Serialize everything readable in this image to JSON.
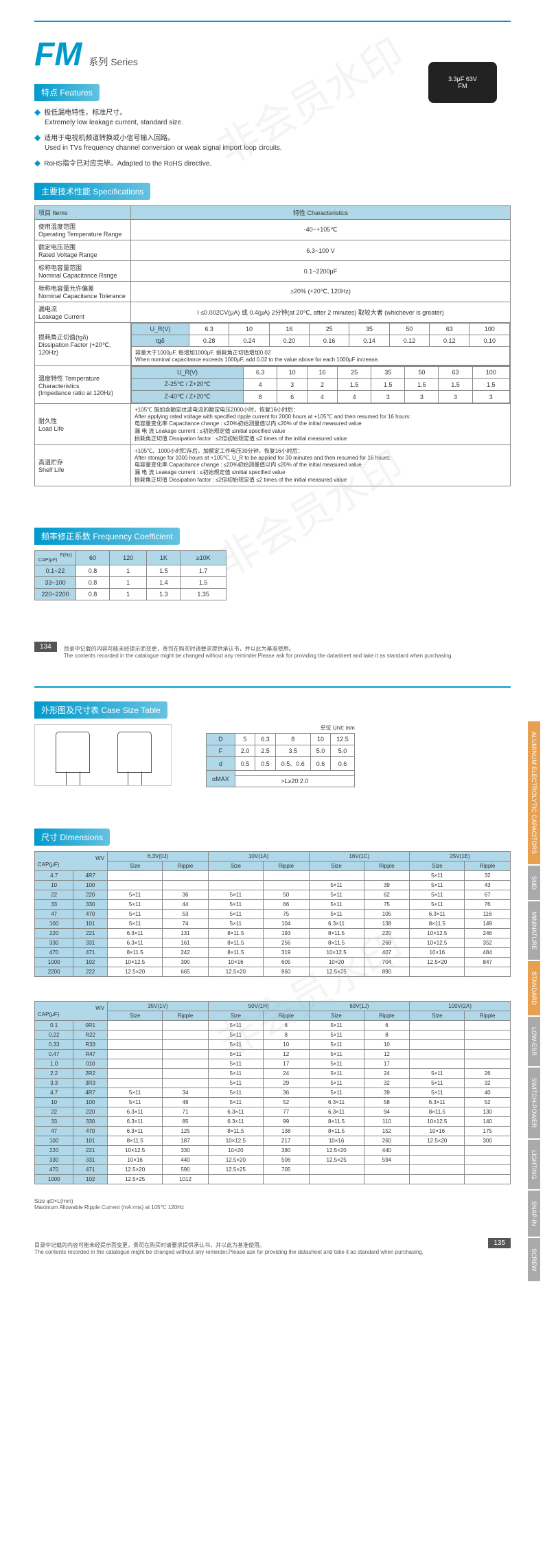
{
  "title": "FM",
  "series": "系列 Series",
  "watermark": "非会员水印",
  "sections": {
    "features": "特点 Features",
    "specs": "主要技术性能 Specifications",
    "freq": "频率修正系数 Frequency Coefficient",
    "case": "外形图及尺寸表 Case Size Table",
    "dims": "尺寸 Dimensions"
  },
  "features": [
    {
      "cn": "极低漏电特性，标准尺寸。",
      "en": "Extremely low leakage current, standard size."
    },
    {
      "cn": "适用于电视机频道转换或小信号输入回路。",
      "en": "Used in TVs frequency channel conversion or weak signal import loop circuits."
    },
    {
      "cn": "RoHS指令已对应完毕。Adapted to the RoHS directive.",
      "en": ""
    }
  ],
  "cap_image": {
    "line1": "3.3μF 63V",
    "line2": "FM"
  },
  "spec_headers": {
    "items": "项目 Items",
    "char": "特性 Characteristics"
  },
  "specs": {
    "temp_range": {
      "label": "使用温度范围\nOperating Temperature Range",
      "value": "-40~+105℃"
    },
    "voltage": {
      "label": "额定电压范围\nRated Voltage Range",
      "value": "6.3~100 V"
    },
    "cap_range": {
      "label": "标称电容量范围\nNominal Capacitance Range",
      "value": "0.1~2200μF"
    },
    "tolerance": {
      "label": "标称电容量允许偏差\nNominal Capacitance Tolerance",
      "value": "±20% (+20℃, 120Hz)"
    },
    "leakage": {
      "label": "漏电流\nLeakage Current",
      "value": "I ≤0.002CV(μA) 或 0.4(μA) 2分钟(at 20℃, after 2 minutes) 取较大者 (whichever is greater)"
    }
  },
  "dissipation": {
    "label": "损耗角正切值(tgδ)\nDissipation Factor (+20℃, 120Hz)",
    "ur": "U_R(V)",
    "tgd": "tgδ",
    "cols": [
      "6.3",
      "10",
      "16",
      "25",
      "35",
      "50",
      "63",
      "100"
    ],
    "vals": [
      "0.28",
      "0.24",
      "0.20",
      "0.16",
      "0.14",
      "0.12",
      "0.12",
      "0.10"
    ],
    "note": "容量大于1000μF, 每增加1000μF, 损耗角正切值增加0.02\nWhen nominal capacitance exceeds 1000μF, add 0.02 to the value above for each 1000μF increase."
  },
  "impedance": {
    "label": "温度特性 Temperature Characteristics\n(Impedance ratio at 120Hz)",
    "ur": "U_R(V)",
    "cols": [
      "6.3",
      "10",
      "16",
      "25",
      "35",
      "50",
      "63",
      "100"
    ],
    "r1_label": "Z-25℃ / Z+20℃",
    "r1": [
      "4",
      "3",
      "2",
      "1.5",
      "1.5",
      "1.5",
      "1.5",
      "1.5"
    ],
    "r2_label": "Z-40℃ / Z+20℃",
    "r2": [
      "8",
      "6",
      "4",
      "4",
      "3",
      "3",
      "3",
      "3"
    ]
  },
  "load_life": {
    "label": "耐久性\nLoad Life",
    "text": "+105℃ 施加含额定纹波电流的额定电压2000小时，恢复16小时后：\nAfter applying rated voltage with specified ripple current for 2000 hours at +105℃ and then resumed for 16 hours:\n电容量变化率 Capacitance change : ≤20%初始测量值以内 ≤20% of the initial measured value\n漏 电 流 Leakage current : ≤初始规定值 ≤initial specified value\n损耗角正切值 Dissipation factor : ≤2倍初始规定值 ≤2 times of the initial measured value"
  },
  "shelf_life": {
    "label": "高温贮存\nShelf Life",
    "text": "+105℃、1000小时贮存后，加额定工作电压30分钟，恢复16小时后：\nAfter storage for 1000 hours at +105℃, U_R to be applied for 30 minutes and then resumed for 16 hours:\n电容量变化率 Capacitance change : ≤20%初始测量值以内 ≤20% of the initial measured value\n漏 电 流 Leakage current : ≤初始规定值 ≤initial specified value\n损耗角正切值 Dissipation factor : ≤2倍初始规定值 ≤2 times of the initial measured value"
  },
  "freq_table": {
    "col_header": "F(Hz)",
    "row_header": "CAP(μF)",
    "cols": [
      "60",
      "120",
      "1K",
      "≥10K"
    ],
    "rows": [
      {
        "label": "0.1~22",
        "vals": [
          "0.8",
          "1",
          "1.5",
          "1.7"
        ]
      },
      {
        "label": "33~100",
        "vals": [
          "0.8",
          "1",
          "1.4",
          "1.5"
        ]
      },
      {
        "label": "220~2200",
        "vals": [
          "0.8",
          "1",
          "1.3",
          "1.35"
        ]
      }
    ]
  },
  "page_num_1": "134",
  "page_num_2": "135",
  "footer": "目录中记载的内容可能未经提示而变更，贵司在购买时请要求提供承认书，并以此为基准使用。\nThe contents recorded in the catalogue might be changed without any reminder.Please ask for providing the datasheet and take it as standard when purchasing.",
  "case_table": {
    "unit": "单位 Unit: mm",
    "rows": [
      {
        "h": "D",
        "vals": [
          "5",
          "6.3",
          "8",
          "10",
          "12.5"
        ]
      },
      {
        "h": "F",
        "vals": [
          "2.0",
          "2.5",
          "3.5",
          "5.0",
          "5.0"
        ]
      },
      {
        "h": "d",
        "vals": [
          "0.5",
          "0.5",
          "0.5、0.6",
          "0.6",
          "0.6"
        ]
      }
    ],
    "amax_label": "αMAX",
    "amax_vals": [
      "<L≤20:1.5",
      ">L≥20:2.0"
    ]
  },
  "dim_table1": {
    "wv_header": "WV",
    "cap_header": "CAP(μF)",
    "size_h": "Size",
    "ripple_h": "Ripple",
    "voltages": [
      "6.3V(0J)",
      "10V(1A)",
      "16V(1C)",
      "25V(1E)"
    ],
    "rows": [
      {
        "c": [
          "4.7",
          "4R7"
        ],
        "v": [
          "",
          "",
          "",
          "",
          "",
          "",
          "5×11",
          "32"
        ]
      },
      {
        "c": [
          "10",
          "100"
        ],
        "v": [
          "",
          "",
          "",
          "",
          "5×11",
          "39",
          "5×11",
          "43"
        ]
      },
      {
        "c": [
          "22",
          "220"
        ],
        "v": [
          "5×11",
          "36",
          "5×11",
          "50",
          "5×11",
          "62",
          "5×11",
          "67"
        ]
      },
      {
        "c": [
          "33",
          "330"
        ],
        "v": [
          "5×11",
          "44",
          "5×11",
          "66",
          "5×11",
          "75",
          "5×11",
          "76"
        ]
      },
      {
        "c": [
          "47",
          "470"
        ],
        "v": [
          "5×11",
          "53",
          "5×11",
          "75",
          "5×11",
          "105",
          "6.3×11",
          "116"
        ]
      },
      {
        "c": [
          "100",
          "101"
        ],
        "v": [
          "5×11",
          "74",
          "5×11",
          "104",
          "6.3×11",
          "138",
          "8×11.5",
          "149"
        ]
      },
      {
        "c": [
          "220",
          "221"
        ],
        "v": [
          "6.3×11",
          "131",
          "8×11.5",
          "193",
          "8×11.5",
          "220",
          "10×12.5",
          "246"
        ]
      },
      {
        "c": [
          "330",
          "331"
        ],
        "v": [
          "6.3×11",
          "161",
          "8×11.5",
          "256",
          "8×11.5",
          "268",
          "10×12.5",
          "352"
        ]
      },
      {
        "c": [
          "470",
          "471"
        ],
        "v": [
          "8×11.5",
          "242",
          "8×11.5",
          "319",
          "10×12.5",
          "407",
          "10×16",
          "484"
        ]
      },
      {
        "c": [
          "1000",
          "102"
        ],
        "v": [
          "10×12.5",
          "390",
          "10×16",
          "605",
          "10×20",
          "704",
          "12.5×20",
          "847"
        ]
      },
      {
        "c": [
          "2200",
          "222"
        ],
        "v": [
          "12.5×20",
          "665",
          "12.5×20",
          "860",
          "12.5×25",
          "890",
          "",
          ""
        ]
      }
    ]
  },
  "dim_table2": {
    "voltages": [
      "35V(1V)",
      "50V(1H)",
      "63V(1J)",
      "100V(2A)"
    ],
    "rows": [
      {
        "c": [
          "0.1",
          "0R1"
        ],
        "v": [
          "",
          "",
          "5×11",
          "6",
          "5×11",
          "6",
          "",
          ""
        ]
      },
      {
        "c": [
          "0.22",
          "R22"
        ],
        "v": [
          "",
          "",
          "5×11",
          "8",
          "5×11",
          "8",
          "",
          ""
        ]
      },
      {
        "c": [
          "0.33",
          "R33"
        ],
        "v": [
          "",
          "",
          "5×11",
          "10",
          "5×11",
          "10",
          "",
          ""
        ]
      },
      {
        "c": [
          "0.47",
          "R47"
        ],
        "v": [
          "",
          "",
          "5×11",
          "12",
          "5×11",
          "12",
          "",
          ""
        ]
      },
      {
        "c": [
          "1.0",
          "010"
        ],
        "v": [
          "",
          "",
          "5×11",
          "17",
          "5×11",
          "17",
          "",
          ""
        ]
      },
      {
        "c": [
          "2.2",
          "2R2"
        ],
        "v": [
          "",
          "",
          "5×11",
          "24",
          "5×11",
          "24",
          "5×11",
          "26"
        ]
      },
      {
        "c": [
          "3.3",
          "3R3"
        ],
        "v": [
          "",
          "",
          "5×11",
          "29",
          "5×11",
          "32",
          "5×11",
          "32"
        ]
      },
      {
        "c": [
          "4.7",
          "4R7"
        ],
        "v": [
          "5×11",
          "34",
          "5×11",
          "36",
          "5×11",
          "39",
          "5×11",
          "40"
        ]
      },
      {
        "c": [
          "10",
          "100"
        ],
        "v": [
          "5×11",
          "48",
          "5×11",
          "52",
          "6.3×11",
          "58",
          "6.3×11",
          "52"
        ]
      },
      {
        "c": [
          "22",
          "220"
        ],
        "v": [
          "6.3×11",
          "71",
          "6.3×11",
          "77",
          "6.3×11",
          "94",
          "8×11.5",
          "130"
        ]
      },
      {
        "c": [
          "33",
          "330"
        ],
        "v": [
          "6.3×11",
          "85",
          "6.3×11",
          "99",
          "8×11.5",
          "110",
          "10×12.5",
          "140"
        ]
      },
      {
        "c": [
          "47",
          "470"
        ],
        "v": [
          "6.3×11",
          "125",
          "8×11.5",
          "138",
          "8×11.5",
          "152",
          "10×16",
          "175"
        ]
      },
      {
        "c": [
          "100",
          "101"
        ],
        "v": [
          "8×11.5",
          "187",
          "10×12.5",
          "217",
          "10×16",
          "260",
          "12.5×20",
          "300"
        ]
      },
      {
        "c": [
          "220",
          "221"
        ],
        "v": [
          "10×12.5",
          "330",
          "10×20",
          "380",
          "12.5×20",
          "440",
          "",
          ""
        ]
      },
      {
        "c": [
          "330",
          "331"
        ],
        "v": [
          "10×16",
          "440",
          "12.5×20",
          "506",
          "12.5×25",
          "594",
          "",
          ""
        ]
      },
      {
        "c": [
          "470",
          "471"
        ],
        "v": [
          "12.5×20",
          "590",
          "12.5×25",
          "705",
          "",
          "",
          "",
          ""
        ]
      },
      {
        "c": [
          "1000",
          "102"
        ],
        "v": [
          "12.5×25",
          "1012",
          "",
          "",
          "",
          "",
          "",
          ""
        ]
      }
    ]
  },
  "dim_note": "Size φD×L(mm)\nMaximum Allowable Ripple Current (mA rms) at 105℃ 120Hz",
  "side_tabs": [
    "ALUMINUM ELECTROLYTIC CAPACITORS",
    "SMD",
    "MININATURE",
    "STANDARD",
    "LOW-ESR",
    "SWITCH-POWER",
    "LIGHTING",
    "SNAP-IN",
    "SCREW"
  ]
}
